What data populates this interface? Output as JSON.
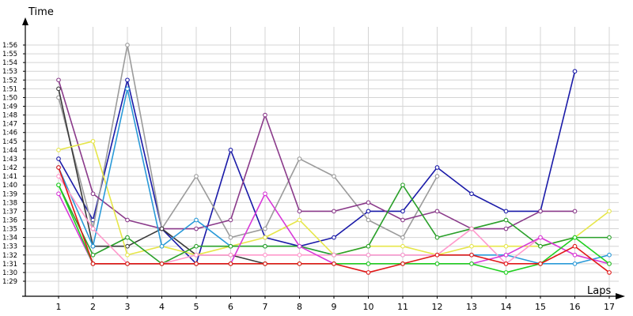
{
  "chart_data": {
    "type": "line",
    "title": "",
    "xlabel": "Laps",
    "ylabel": "Time",
    "x": [
      1,
      2,
      3,
      4,
      5,
      6,
      7,
      8,
      9,
      10,
      11,
      12,
      13,
      14,
      15,
      16,
      17
    ],
    "xlim": [
      0,
      17.3
    ],
    "ylim": [
      1.4,
      1.58
    ],
    "y_ticks": [
      "1:29",
      "1:30",
      "1:31",
      "1:32",
      "1:33",
      "1:34",
      "1:35",
      "1:36",
      "1:37",
      "1:38",
      "1:39",
      "1:40",
      "1:41",
      "1:42",
      "1:43",
      "1:44",
      "1:45",
      "1:46",
      "1:47",
      "1:48",
      "1:49",
      "1:50",
      "1:51",
      "1:52",
      "1:53",
      "1:54",
      "1:55",
      "1:56"
    ],
    "grid": true,
    "legend": "none",
    "series": [
      {
        "color": "#1a1aa8",
        "values": [
          "1:43",
          "1:36",
          "1:52",
          "1:35",
          "1:31",
          "1:44",
          "1:34",
          "1:33",
          "1:34",
          "1:37",
          "1:37",
          "1:42",
          "1:39",
          "1:37",
          "1:37",
          "1:53",
          null
        ]
      },
      {
        "color": "#9b9b9b",
        "values": [
          "1:50",
          "1:35",
          "1:56",
          "1:35",
          "1:41",
          "1:34",
          "1:35",
          "1:43",
          "1:41",
          "1:36",
          "1:34",
          "1:41",
          null,
          null,
          null,
          null,
          null
        ]
      },
      {
        "color": "#8a3a8a",
        "values": [
          "1:52",
          "1:39",
          "1:36",
          "1:35",
          "1:35",
          "1:36",
          "1:48",
          "1:37",
          "1:37",
          "1:38",
          "1:36",
          "1:37",
          "1:35",
          "1:35",
          "1:37",
          "1:37",
          null
        ]
      },
      {
        "color": "#3a3a3a",
        "values": [
          "1:51",
          "1:33",
          "1:33",
          "1:35",
          "1:32",
          "1:32",
          "1:31",
          "null",
          "null",
          null,
          null,
          null,
          null,
          null,
          null,
          null,
          null
        ]
      },
      {
        "color": "#e6e64a",
        "values": [
          "1:44",
          "1:45",
          "1:32",
          "1:33",
          "1:32",
          "1:33",
          "1:34",
          "1:36",
          "1:32",
          "1:33",
          "1:33",
          "1:32",
          "1:33",
          "1:33",
          "1:33",
          "1:34",
          "1:37"
        ]
      },
      {
        "color": "#2a9ad8",
        "values": [
          "1:42",
          "1:33",
          "1:51",
          "1:33",
          "1:36",
          "1:33",
          "1:33",
          "1:33",
          "1:32",
          "1:32",
          "1:32",
          "1:32",
          "1:32",
          "1:32",
          "1:31",
          "1:31",
          "1:32"
        ]
      },
      {
        "color": "#2aa02a",
        "values": [
          "1:40",
          "1:32",
          "1:34",
          "1:31",
          "1:33",
          "1:33",
          "1:33",
          "1:33",
          "1:32",
          "1:33",
          "1:40",
          "1:34",
          "1:35",
          "1:36",
          "1:33",
          "1:34",
          "1:34"
        ]
      },
      {
        "color": "#ff99cc",
        "values": [
          "1:41",
          "1:35",
          "1:31",
          "1:31",
          "1:32",
          "1:32",
          "1:32",
          "1:32",
          "1:32",
          "1:32",
          "1:32",
          "1:32",
          "1:35",
          "1:31",
          "1:34",
          "1:32",
          "1:31"
        ]
      },
      {
        "color": "#d83ad8",
        "values": [
          "1:39",
          "1:31",
          "1:31",
          "1:31",
          "1:31",
          "1:31",
          "1:39",
          "1:33",
          "1:31",
          "1:31",
          "1:31",
          "1:31",
          "1:31",
          "1:32",
          "1:34",
          "1:32",
          "1:31"
        ]
      },
      {
        "color": "#20d020",
        "values": [
          "1:40",
          "1:31",
          "1:31",
          "1:31",
          "1:31",
          "1:31",
          "1:31",
          "1:31",
          "1:31",
          "1:31",
          "1:31",
          "1:31",
          "1:31",
          "1:30",
          "1:31",
          "1:34",
          "1:31"
        ]
      },
      {
        "color": "#e01818",
        "values": [
          "1:42",
          "1:31",
          "1:31",
          "1:31",
          "1:31",
          "1:31",
          "1:31",
          "1:31",
          "1:31",
          "1:30",
          "1:31",
          "1:32",
          "1:32",
          "1:31",
          "1:31",
          "1:33",
          "1:30"
        ]
      }
    ]
  }
}
